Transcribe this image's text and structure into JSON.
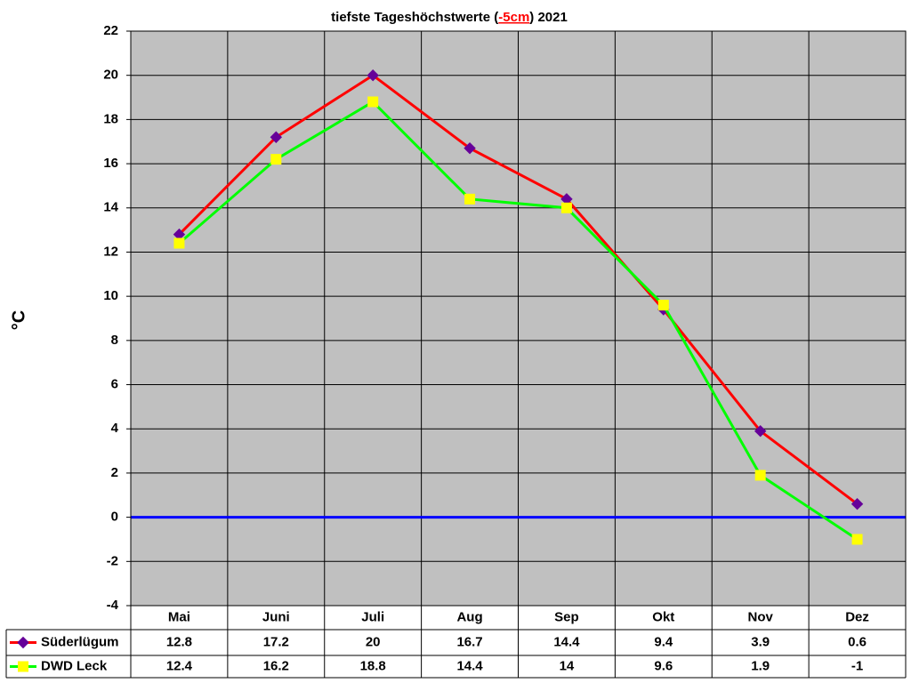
{
  "chart_data": {
    "type": "line",
    "title": [
      "tiefste Tageshöchstwerte (",
      "-5cm",
      ") 2021"
    ],
    "title_highlight_color": "#ff0000",
    "y_label": "°C",
    "categories": [
      "Mai",
      "Juni",
      "Juli",
      "Aug",
      "Sep",
      "Okt",
      "Nov",
      "Dez"
    ],
    "series": [
      {
        "name": "Süderlügum",
        "color": "#ff0000",
        "marker": "diamond",
        "marker_color": "#660099",
        "values": [
          12.8,
          17.2,
          20,
          16.7,
          14.4,
          9.4,
          3.9,
          0.6
        ]
      },
      {
        "name": "DWD Leck",
        "color": "#00ff00",
        "marker": "square",
        "marker_color": "#ffff00",
        "values": [
          12.4,
          16.2,
          18.8,
          14.4,
          14,
          9.6,
          1.9,
          -1
        ]
      }
    ],
    "ylim": [
      -4,
      22
    ],
    "yticks": [
      -4,
      -2,
      0,
      2,
      4,
      6,
      8,
      10,
      12,
      14,
      16,
      18,
      20,
      22
    ],
    "grid": true,
    "plot_background": "#c0c0c0",
    "reference_line": {
      "value": 0,
      "color": "#0000ff"
    },
    "data_table": true
  }
}
